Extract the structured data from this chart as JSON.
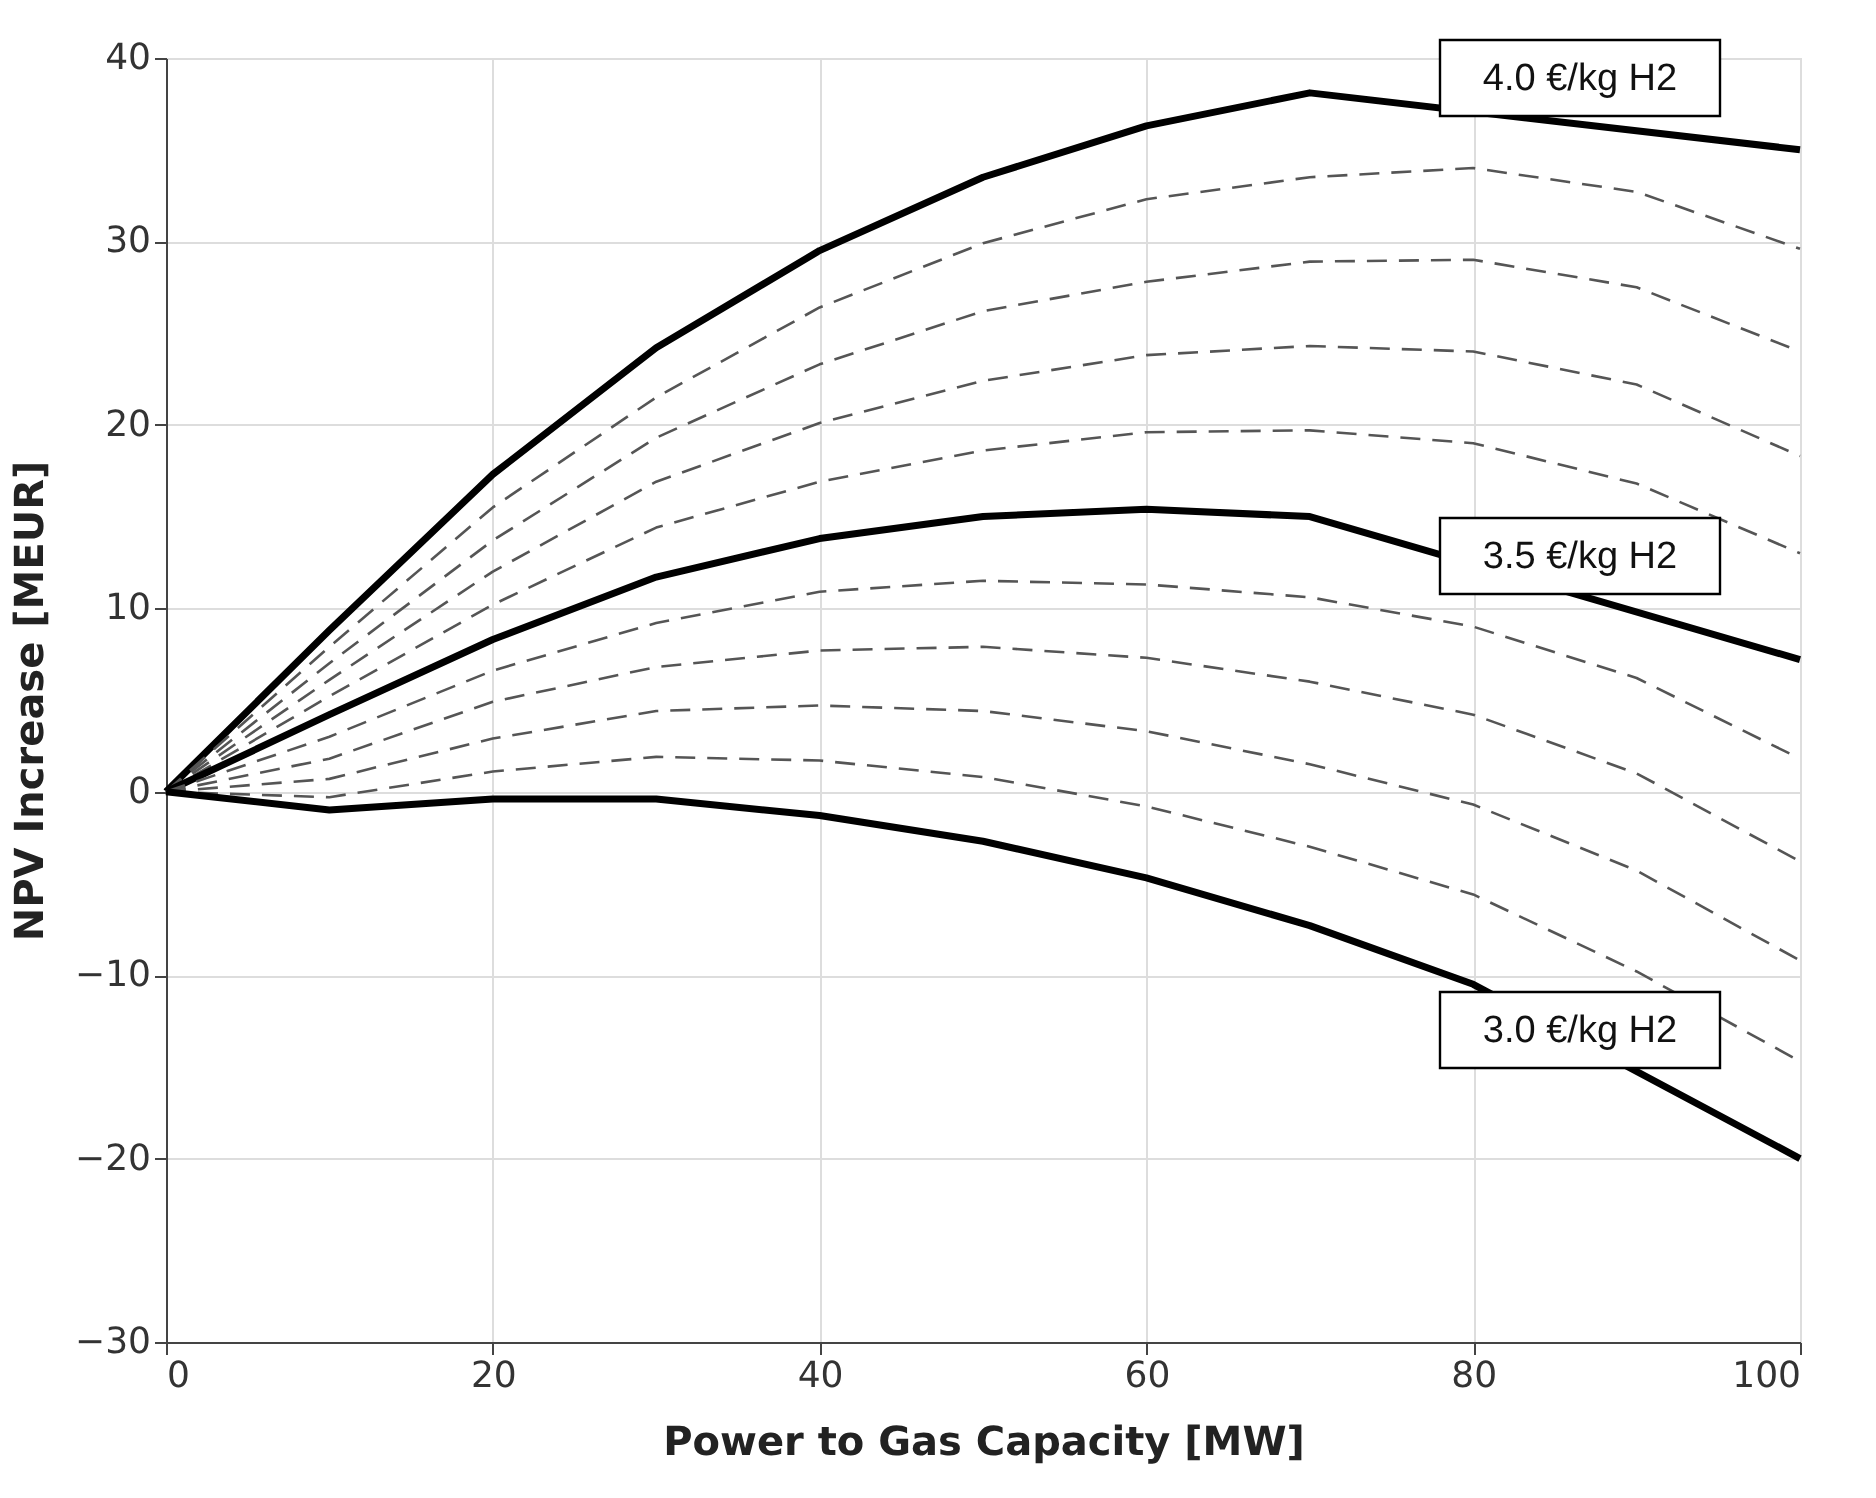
{
  "chart_data": {
    "type": "line",
    "xlabel": "Power to Gas Capacity [MW]",
    "ylabel": "NPV Increase [MEUR]",
    "x": [
      0,
      10,
      20,
      30,
      40,
      50,
      60,
      70,
      80,
      90,
      100
    ],
    "series": [
      {
        "color": "#000000",
        "line_style": "solid",
        "values": [
          0,
          8.8,
          17.3,
          24.2,
          29.5,
          33.5,
          36.3,
          38.1,
          null,
          null,
          35.0
        ]
      },
      {
        "color": "#555555",
        "line_style": "dashed",
        "values": [
          0,
          7.9,
          15.5,
          21.5,
          26.4,
          29.9,
          32.3,
          33.5,
          34.0,
          32.7,
          29.6
        ]
      },
      {
        "color": "#555555",
        "line_style": "dashed",
        "values": [
          0,
          7.0,
          13.7,
          19.3,
          23.3,
          26.2,
          27.8,
          28.9,
          29.0,
          27.5,
          24.0
        ]
      },
      {
        "color": "#555555",
        "line_style": "dashed",
        "values": [
          0,
          6.1,
          12.0,
          16.9,
          20.1,
          22.4,
          23.8,
          24.3,
          24.0,
          22.2,
          18.3
        ]
      },
      {
        "color": "#555555",
        "line_style": "dashed",
        "values": [
          0,
          5.2,
          10.2,
          14.4,
          16.9,
          18.6,
          19.6,
          19.7,
          19.0,
          16.8,
          13.0
        ]
      },
      {
        "color": "#000000",
        "line_style": "solid",
        "values": [
          0,
          4.2,
          8.3,
          11.7,
          13.8,
          15.0,
          15.4,
          15.0,
          null,
          null,
          7.2
        ]
      },
      {
        "color": "#555555",
        "line_style": "dashed",
        "values": [
          0,
          3.0,
          6.6,
          9.2,
          10.9,
          11.5,
          11.3,
          10.6,
          9.0,
          6.2,
          1.8
        ]
      },
      {
        "color": "#555555",
        "line_style": "dashed",
        "values": [
          0,
          1.8,
          4.9,
          6.8,
          7.7,
          7.9,
          7.3,
          6.0,
          4.2,
          1.0,
          -3.8
        ]
      },
      {
        "color": "#555555",
        "line_style": "dashed",
        "values": [
          0,
          0.7,
          2.9,
          4.4,
          4.7,
          4.4,
          3.3,
          1.5,
          -0.7,
          -4.3,
          -9.2
        ]
      },
      {
        "color": "#555555",
        "line_style": "dashed",
        "values": [
          0,
          -0.3,
          1.1,
          1.9,
          1.7,
          0.8,
          -0.8,
          -3.0,
          -5.6,
          -9.8,
          -14.7
        ]
      },
      {
        "color": "#000000",
        "line_style": "solid",
        "values": [
          0,
          -1.0,
          -0.4,
          -0.4,
          -1.3,
          -2.7,
          -4.7,
          -7.3,
          -10.5,
          null,
          -20.0
        ]
      }
    ],
    "annotations": [
      "4.0 €/kg H2",
      "3.5 €/kg H2",
      "3.0 €/kg H2"
    ],
    "xlim": [
      0,
      100
    ],
    "xticks": [
      0,
      20,
      40,
      60,
      80,
      100
    ],
    "ylim": [
      -30,
      40
    ],
    "yticks": [
      -30,
      -20,
      -10,
      0,
      10,
      20,
      30,
      40
    ],
    "grid": true
  }
}
